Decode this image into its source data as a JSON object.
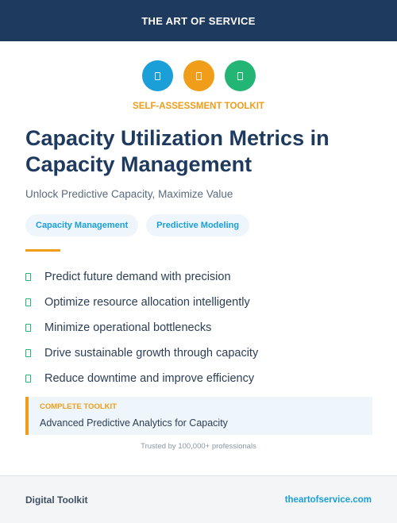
{
  "banner": {
    "brand": "THE ART OF SERVICE"
  },
  "icons": [
    {
      "name": "clipboard-icon",
      "color": "#1a9fd8"
    },
    {
      "name": "clipboard-icon",
      "color": "#f09d1a"
    },
    {
      "name": "clipboard-icon",
      "color": "#22b573"
    }
  ],
  "kicker": "SELF-ASSESSMENT TOOLKIT",
  "title_line1": "Capacity Utilization Metrics in",
  "title_line2": "Capacity Management",
  "subtitle": "Unlock Predictive Capacity, Maximize Value",
  "tags": [
    "Capacity Management",
    "Predictive Modeling"
  ],
  "benefits": [
    "Predict future demand with precision",
    "Optimize resource allocation intelligently",
    "Minimize operational bottlenecks",
    "Drive sustainable growth through capacity",
    "Reduce downtime and improve efficiency"
  ],
  "toolkit": {
    "label": "COMPLETE TOOLKIT",
    "description": "Advanced Predictive Analytics for Capacity"
  },
  "trusted": "Trusted by 100,000+ professionals",
  "footer": {
    "left": "Digital Toolkit",
    "right": "theartofservice.com"
  },
  "colors": {
    "navy": "#1e3a5f",
    "orange": "#f09d1a",
    "blue": "#1a9fd8",
    "green": "#22b573"
  }
}
